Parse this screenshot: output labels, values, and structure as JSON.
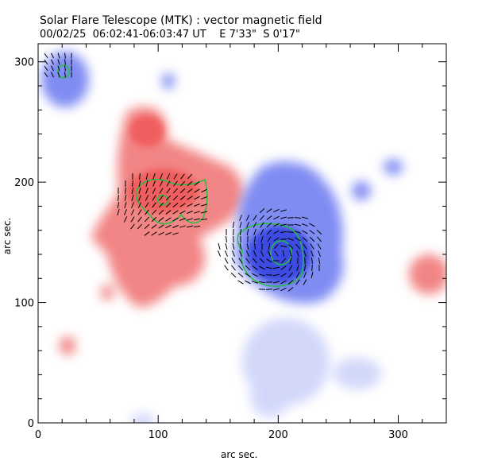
{
  "header": {
    "title_line1": "Solar Flare Telescope (MTK) : vector magnetic field",
    "title_line2": "00/02/25  06:02:41-06:03:47 UT    E 7'33\"  S 0'17\""
  },
  "chart_data": {
    "type": "heatmap",
    "xlabel": "arc sec.",
    "ylabel": "arc sec.",
    "xlim": [
      0,
      340
    ],
    "ylim": [
      0,
      315
    ],
    "x_ticks": [
      0,
      100,
      200,
      300
    ],
    "y_ticks": [
      0,
      100,
      200,
      300
    ],
    "colors": {
      "positive": "#f06060",
      "negative": "#5060f0",
      "contour": "#20c040",
      "vector": "#000000"
    }
  }
}
